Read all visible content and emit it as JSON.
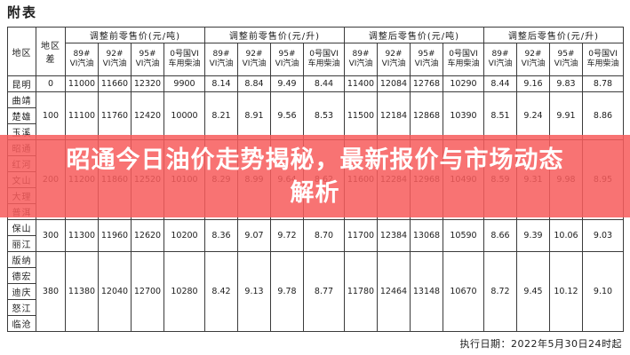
{
  "doc_title": "附表",
  "banner": {
    "line1": "昭通今日油价走势揭秘，最新报价与市场动态",
    "line2": "解析",
    "background_color": "#f75c5c",
    "text_color": "#ffffff"
  },
  "footer": {
    "execution_date": "执行日期：2022年5月30日24时起"
  },
  "table": {
    "corner_headers": {
      "region": "地区",
      "region_diff": "地区差"
    },
    "group_headers": [
      "调整前零售价(元/吨)",
      "调整前零售价(元/升)",
      "调整后零售价(元/吨)",
      "调整后零售价(元/升)"
    ],
    "fuel_columns": [
      "89#\nVI汽油",
      "92#\nVI汽油",
      "95#\nVI汽油",
      "0号国VI\n车用柴油"
    ],
    "row_groups": [
      {
        "regions": [
          "昆明"
        ],
        "diff": "0",
        "values": [
          "11000",
          "11660",
          "12320",
          "9900",
          "8.14",
          "8.84",
          "9.49",
          "8.44",
          "11400",
          "12084",
          "12768",
          "10290",
          "8.44",
          "9.16",
          "9.83",
          "8.78"
        ]
      },
      {
        "regions": [
          "曲靖",
          "楚雄",
          "玉溪"
        ],
        "diff": "100",
        "values": [
          "11100",
          "11760",
          "12420",
          "10000",
          "8.21",
          "8.91",
          "9.56",
          "8.53",
          "11500",
          "12184",
          "12868",
          "10390",
          "8.51",
          "9.24",
          "9.91",
          "8.86"
        ]
      },
      {
        "regions": [
          "昭通",
          "红河",
          "文山",
          "大理",
          "普洱"
        ],
        "diff": "200",
        "values": [
          "11200",
          "11860",
          "12520",
          "10100",
          "8.29",
          "8.99",
          "9.64",
          "8.62",
          "11600",
          "12284",
          "12968",
          "10490",
          "8.59",
          "9.31",
          "9.98",
          "8.95"
        ]
      },
      {
        "regions": [
          "保山",
          "丽江"
        ],
        "diff": "300",
        "values": [
          "11300",
          "11960",
          "12620",
          "10200",
          "8.36",
          "9.07",
          "9.72",
          "8.70",
          "11700",
          "12384",
          "13068",
          "10590",
          "8.66",
          "9.39",
          "10.06",
          "9.03"
        ]
      },
      {
        "regions": [
          "版纳",
          "德宏",
          "迪庆",
          "怒江",
          "临沧"
        ],
        "diff": "380",
        "values": [
          "11380",
          "12040",
          "12700",
          "10280",
          "8.42",
          "9.13",
          "9.78",
          "8.77",
          "11780",
          "12464",
          "13148",
          "10670",
          "8.72",
          "9.45",
          "10.12",
          "9.10"
        ]
      }
    ],
    "column_widths": {
      "region": 32,
      "diff": 33,
      "fuel": [
        37,
        37,
        37,
        46
      ]
    }
  }
}
